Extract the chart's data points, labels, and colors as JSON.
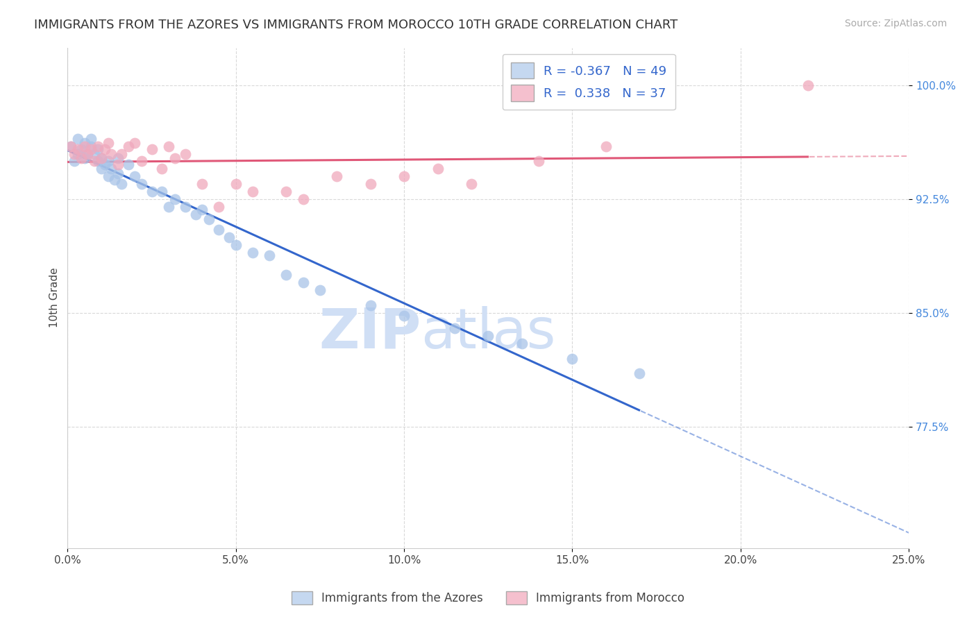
{
  "title": "IMMIGRANTS FROM THE AZORES VS IMMIGRANTS FROM MOROCCO 10TH GRADE CORRELATION CHART",
  "source": "Source: ZipAtlas.com",
  "ylabel": "10th Grade",
  "azores_R": "-0.367",
  "azores_N": "49",
  "morocco_R": "0.338",
  "morocco_N": "37",
  "azores_color": "#a8c4e8",
  "morocco_color": "#f0a8bc",
  "azores_line_color": "#3366cc",
  "morocco_line_color": "#e05878",
  "legend_azores_face": "#c5d8f0",
  "legend_morocco_face": "#f5c0ce",
  "watermark_zip": "ZIP",
  "watermark_atlas": "atlas",
  "watermark_color": "#d0dff5",
  "azores_x": [
    0.001,
    0.002,
    0.003,
    0.003,
    0.004,
    0.005,
    0.005,
    0.006,
    0.007,
    0.007,
    0.008,
    0.009,
    0.009,
    0.01,
    0.01,
    0.011,
    0.012,
    0.012,
    0.013,
    0.014,
    0.015,
    0.015,
    0.016,
    0.018,
    0.02,
    0.022,
    0.025,
    0.028,
    0.03,
    0.032,
    0.035,
    0.038,
    0.04,
    0.042,
    0.045,
    0.048,
    0.05,
    0.055,
    0.06,
    0.065,
    0.07,
    0.075,
    0.09,
    0.1,
    0.115,
    0.125,
    0.135,
    0.15,
    0.17
  ],
  "azores_y": [
    0.96,
    0.95,
    0.955,
    0.965,
    0.958,
    0.952,
    0.962,
    0.955,
    0.96,
    0.965,
    0.955,
    0.95,
    0.958,
    0.952,
    0.945,
    0.948,
    0.94,
    0.95,
    0.945,
    0.938,
    0.942,
    0.952,
    0.935,
    0.948,
    0.94,
    0.935,
    0.93,
    0.93,
    0.92,
    0.925,
    0.92,
    0.915,
    0.918,
    0.912,
    0.905,
    0.9,
    0.895,
    0.89,
    0.888,
    0.875,
    0.87,
    0.865,
    0.855,
    0.848,
    0.84,
    0.835,
    0.83,
    0.82,
    0.81
  ],
  "morocco_x": [
    0.001,
    0.002,
    0.003,
    0.004,
    0.005,
    0.006,
    0.007,
    0.008,
    0.009,
    0.01,
    0.011,
    0.012,
    0.013,
    0.015,
    0.016,
    0.018,
    0.02,
    0.022,
    0.025,
    0.028,
    0.03,
    0.032,
    0.035,
    0.04,
    0.045,
    0.05,
    0.055,
    0.065,
    0.07,
    0.08,
    0.09,
    0.1,
    0.11,
    0.12,
    0.14,
    0.16,
    0.22
  ],
  "morocco_y": [
    0.96,
    0.955,
    0.958,
    0.952,
    0.96,
    0.955,
    0.958,
    0.95,
    0.96,
    0.952,
    0.958,
    0.962,
    0.955,
    0.948,
    0.955,
    0.96,
    0.962,
    0.95,
    0.958,
    0.945,
    0.96,
    0.952,
    0.955,
    0.935,
    0.92,
    0.935,
    0.93,
    0.93,
    0.925,
    0.94,
    0.935,
    0.94,
    0.945,
    0.935,
    0.95,
    0.96,
    1.0
  ],
  "xlim": [
    0.0,
    0.25
  ],
  "ylim": [
    0.695,
    1.025
  ],
  "ytick_labels": [
    "100.0%",
    "92.5%",
    "85.0%",
    "77.5%"
  ],
  "ytick_values": [
    1.0,
    0.925,
    0.85,
    0.775
  ],
  "xtick_positions": [
    0.0,
    0.05,
    0.1,
    0.15,
    0.2,
    0.25
  ],
  "xtick_labels": [
    "0.0%",
    "5.0%",
    "10.0%",
    "15.0%",
    "20.0%",
    "25.0%"
  ],
  "grid_color": "#d5d5d5",
  "background_color": "#ffffff",
  "title_fontsize": 13,
  "axis_label_fontsize": 11,
  "tick_fontsize": 11,
  "source_fontsize": 10
}
